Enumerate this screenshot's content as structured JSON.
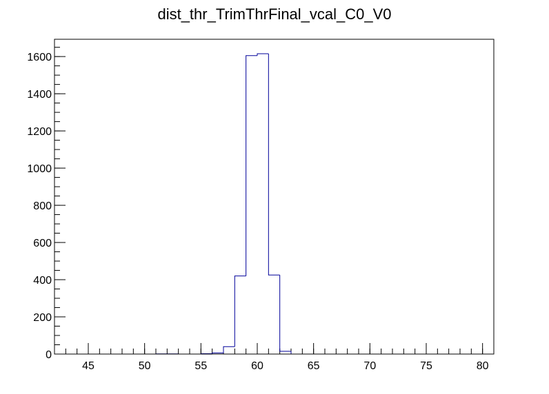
{
  "chart_data": {
    "type": "histogram",
    "title": "dist_thr_TrimThrFinal_vcal_C0_V0",
    "bins": [
      42,
      43,
      44,
      45,
      46,
      47,
      48,
      49,
      50,
      51,
      52,
      53,
      54,
      55,
      56,
      57,
      58,
      59,
      60,
      61,
      62,
      63,
      64,
      65,
      66,
      67,
      68,
      69,
      70,
      71,
      72,
      73,
      74,
      75,
      76,
      77,
      78,
      79,
      80,
      81
    ],
    "counts": [
      0,
      0,
      0,
      0,
      0,
      0,
      0,
      0,
      0,
      1,
      1,
      0,
      0,
      2,
      6,
      40,
      420,
      1605,
      1615,
      425,
      15,
      0,
      0,
      0,
      0,
      0,
      0,
      0,
      0,
      0,
      0,
      0,
      0,
      0,
      0,
      0,
      0,
      0,
      0
    ],
    "color": "#000099",
    "xlim": [
      42,
      81
    ],
    "xticks": [
      45,
      50,
      55,
      60,
      65,
      70,
      75,
      80
    ],
    "ylim": [
      0,
      1693
    ],
    "yticks": [
      0,
      200,
      400,
      600,
      800,
      1000,
      1200,
      1400,
      1600
    ]
  }
}
